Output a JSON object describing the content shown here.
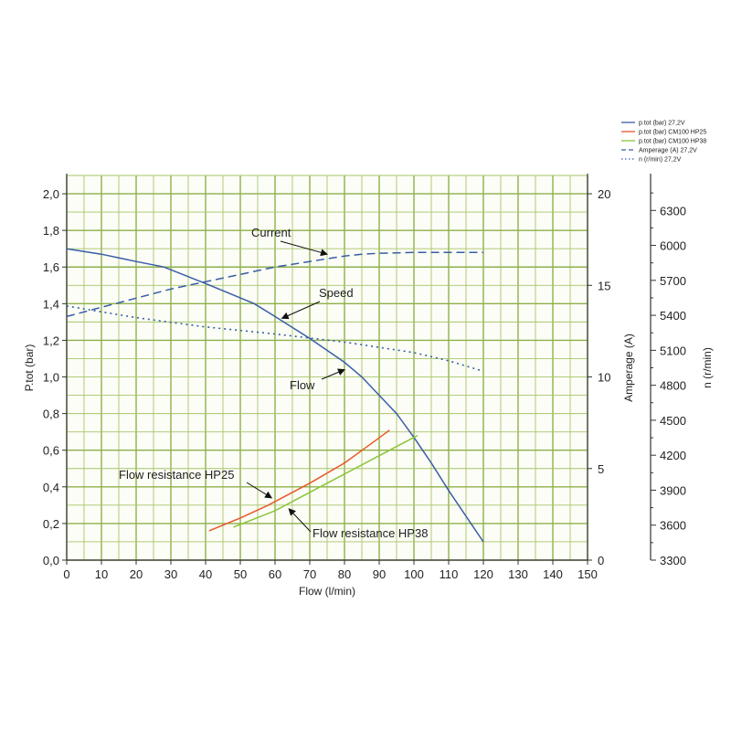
{
  "chart_data": {
    "type": "line",
    "xlabel": "Flow (l/min)",
    "ylabel": "P.tot (bar)",
    "y2label": "Amperage (A)",
    "y3label": "n (r/min)",
    "xlim": [
      0,
      150
    ],
    "ylim": [
      0,
      2.1
    ],
    "y2lim": [
      0,
      21
    ],
    "y3lim": [
      3300,
      6600
    ],
    "grid": true,
    "legend_position": "top-right",
    "x_ticks": [
      "0",
      "10",
      "20",
      "30",
      "40",
      "50",
      "60",
      "70",
      "80",
      "90",
      "100",
      "110",
      "120",
      "130",
      "140",
      "150"
    ],
    "y_ticks": [
      "0,0",
      "0,2",
      "0,4",
      "0,6",
      "0,8",
      "1,0",
      "1,2",
      "1,4",
      "1,6",
      "1,8",
      "2,0"
    ],
    "y2_ticks": [
      "0",
      "5",
      "10",
      "15",
      "20"
    ],
    "y3_ticks": [
      "3300",
      "3600",
      "3900",
      "4200",
      "4500",
      "4800",
      "5100",
      "5400",
      "5700",
      "6000",
      "6300"
    ],
    "series": [
      {
        "name": "p.tot (bar) 27,2V",
        "axis": "left",
        "color": "#3a5da8",
        "dash": "solid",
        "points": [
          [
            0,
            1.7
          ],
          [
            10,
            1.67
          ],
          [
            20,
            1.63
          ],
          [
            28,
            1.6
          ],
          [
            40,
            1.51
          ],
          [
            54,
            1.4
          ],
          [
            60,
            1.33
          ],
          [
            70,
            1.21
          ],
          [
            80,
            1.08
          ],
          [
            85,
            1.0
          ],
          [
            90,
            0.9
          ],
          [
            95,
            0.8
          ],
          [
            100,
            0.67
          ],
          [
            105,
            0.53
          ],
          [
            110,
            0.38
          ],
          [
            115,
            0.24
          ],
          [
            120,
            0.1
          ]
        ]
      },
      {
        "name": "p.tot (bar) CM100 HP25",
        "axis": "left",
        "color": "#e8572a",
        "dash": "solid",
        "points": [
          [
            41,
            0.16
          ],
          [
            50,
            0.23
          ],
          [
            58,
            0.3
          ],
          [
            70,
            0.42
          ],
          [
            80,
            0.53
          ],
          [
            88,
            0.64
          ],
          [
            93,
            0.71
          ]
        ]
      },
      {
        "name": "p.tot (bar) CM100 HP38",
        "axis": "left",
        "color": "#8cc43c",
        "dash": "solid",
        "points": [
          [
            48,
            0.18
          ],
          [
            60,
            0.27
          ],
          [
            70,
            0.37
          ],
          [
            80,
            0.47
          ],
          [
            90,
            0.57
          ],
          [
            96,
            0.63
          ],
          [
            101,
            0.68
          ]
        ]
      },
      {
        "name": "Amperage (A) 27,2V",
        "axis": "right",
        "color": "#3a5da8",
        "dash": "dashed",
        "points": [
          [
            0,
            13.3
          ],
          [
            10,
            13.8
          ],
          [
            20,
            14.3
          ],
          [
            30,
            14.8
          ],
          [
            40,
            15.2
          ],
          [
            50,
            15.6
          ],
          [
            60,
            16.0
          ],
          [
            70,
            16.3
          ],
          [
            80,
            16.6
          ],
          [
            85,
            16.7
          ],
          [
            90,
            16.75
          ],
          [
            100,
            16.8
          ],
          [
            110,
            16.8
          ],
          [
            120,
            16.8
          ]
        ]
      },
      {
        "name": "n (r/min) 27,2V",
        "axis": "right2",
        "color": "#3a5da8",
        "dash": "dotted",
        "points": [
          [
            0,
            5480
          ],
          [
            20,
            5380
          ],
          [
            40,
            5300
          ],
          [
            60,
            5240
          ],
          [
            80,
            5170
          ],
          [
            100,
            5080
          ],
          [
            110,
            5010
          ],
          [
            120,
            4920
          ]
        ]
      }
    ],
    "annotations": [
      {
        "text": "Current",
        "target": [
          75,
          1.67
        ]
      },
      {
        "text": "Speed",
        "target": [
          62,
          1.32
        ]
      },
      {
        "text": "Flow",
        "target": [
          80,
          1.04
        ]
      },
      {
        "text": "Flow resistance HP25",
        "target": [
          59,
          0.34
        ]
      },
      {
        "text": "Flow resistance HP38",
        "target": [
          64,
          0.28
        ]
      }
    ]
  }
}
